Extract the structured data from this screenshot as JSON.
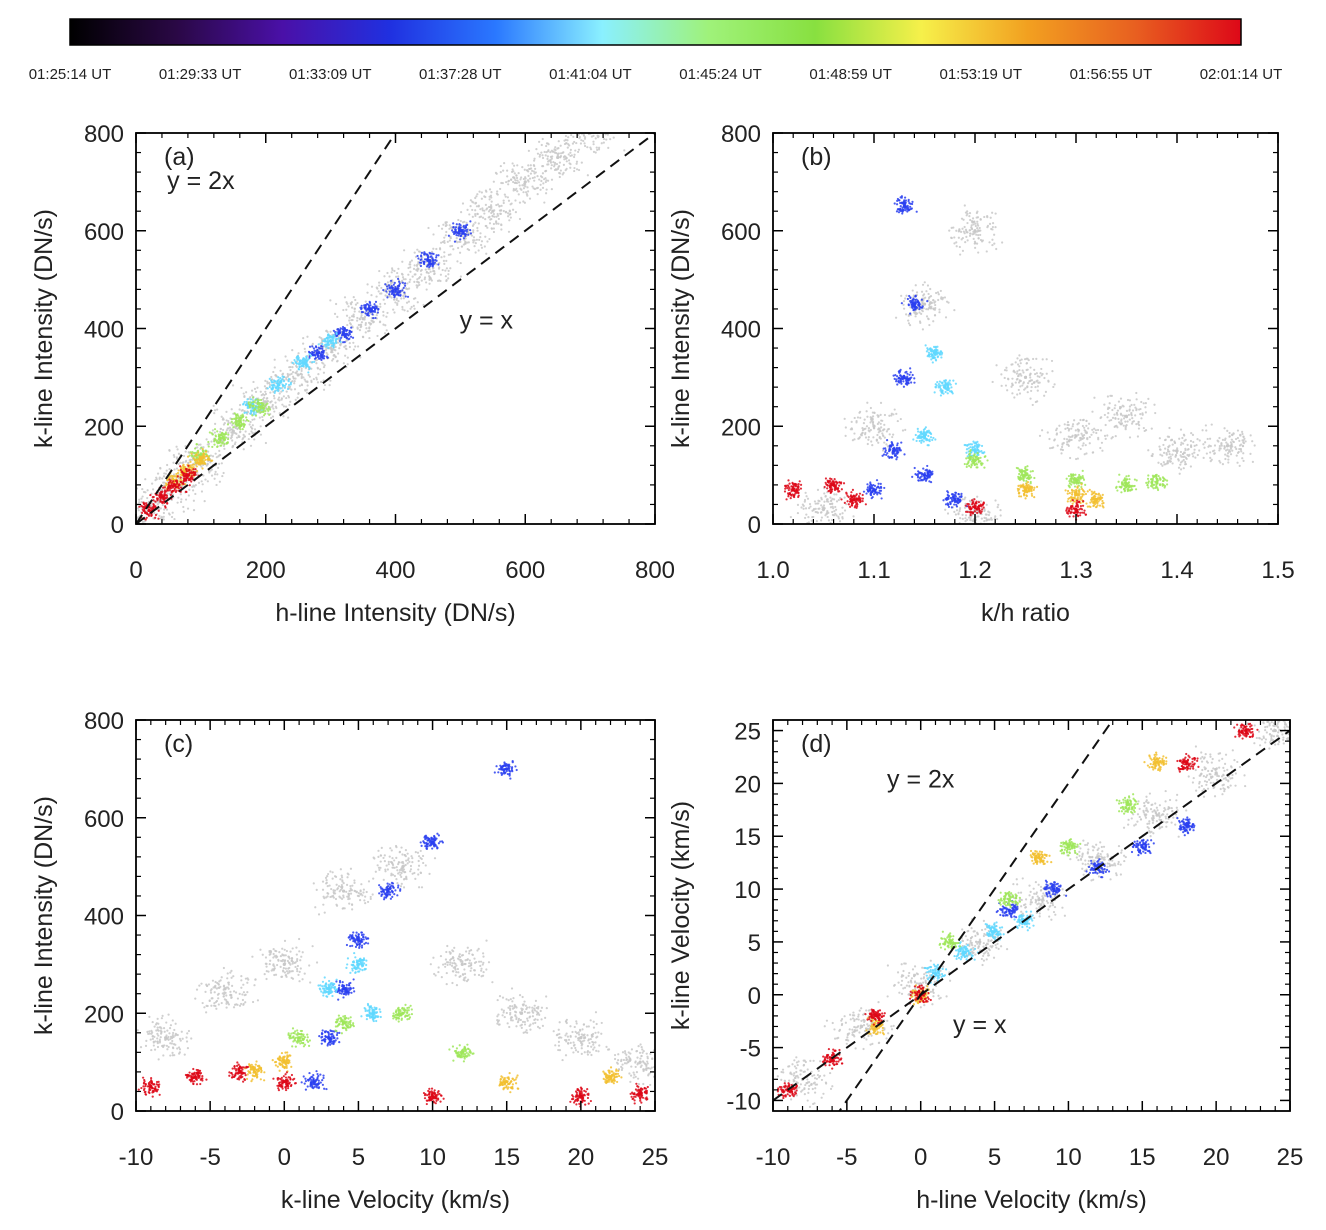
{
  "colorbar": {
    "tick_labels": [
      "01:25:14 UT",
      "01:29:33 UT",
      "01:33:09 UT",
      "01:37:28 UT",
      "01:41:04 UT",
      "01:45:24 UT",
      "01:48:59 UT",
      "01:53:19 UT",
      "01:56:55 UT",
      "02:01:14 UT"
    ],
    "colormap": [
      "#000000",
      "#2a0845",
      "#4a10a8",
      "#2030e0",
      "#2a78ff",
      "#8af0ff",
      "#9ff27a",
      "#88e040",
      "#f6f04a",
      "#f2a020",
      "#e86020",
      "#dd0818"
    ]
  },
  "chart_data": [
    {
      "type": "scatter",
      "panel_label": "(a)",
      "xlabel": "h-line Intensity (DN/s)",
      "ylabel": "k-line Intensity (DN/s)",
      "xlim": [
        0,
        800
      ],
      "ylim": [
        0,
        800
      ],
      "xticks": [
        0,
        200,
        400,
        600,
        800
      ],
      "yticks": [
        0,
        200,
        400,
        600,
        800
      ],
      "xtick_labels": [
        "0",
        "200",
        "400",
        "600",
        "800"
      ],
      "ytick_labels": [
        "0",
        "200",
        "400",
        "600",
        "800"
      ],
      "annotations": [
        {
          "text": "y = 2x",
          "x": 100,
          "y": 685
        },
        {
          "text": "y = x",
          "x": 540,
          "y": 400
        }
      ],
      "reference_lines": [
        {
          "slope": 2,
          "intercept": 0
        },
        {
          "slope": 1,
          "intercept": 0
        }
      ],
      "series": [
        {
          "color": "#c8c8c8",
          "points": [
            [
              20,
              28
            ],
            [
              60,
              80
            ],
            [
              100,
              130
            ],
            [
              150,
              190
            ],
            [
              200,
              250
            ],
            [
              250,
              305
            ],
            [
              300,
              360
            ],
            [
              350,
              420
            ],
            [
              400,
              475
            ],
            [
              450,
              530
            ],
            [
              500,
              590
            ],
            [
              550,
              640
            ],
            [
              600,
              700
            ],
            [
              650,
              750
            ],
            [
              700,
              800
            ]
          ]
        },
        {
          "color": "#2a40f0",
          "points": [
            [
              280,
              350
            ],
            [
              320,
              390
            ],
            [
              360,
              440
            ],
            [
              400,
              480
            ],
            [
              450,
              540
            ],
            [
              500,
              600
            ]
          ]
        },
        {
          "color": "#60d8ff",
          "points": [
            [
              180,
              240
            ],
            [
              220,
              285
            ],
            [
              260,
              330
            ],
            [
              300,
              375
            ]
          ]
        },
        {
          "color": "#9fe65a",
          "points": [
            [
              100,
              140
            ],
            [
              130,
              175
            ],
            [
              160,
              210
            ],
            [
              190,
              240
            ]
          ]
        },
        {
          "color": "#f2c030",
          "points": [
            [
              60,
              88
            ],
            [
              80,
              110
            ],
            [
              100,
              132
            ]
          ]
        },
        {
          "color": "#dd0818",
          "points": [
            [
              20,
              28
            ],
            [
              40,
              55
            ],
            [
              60,
              80
            ],
            [
              80,
              100
            ]
          ]
        }
      ]
    },
    {
      "type": "scatter",
      "panel_label": "(b)",
      "xlabel": "k/h ratio",
      "ylabel": "k-line Intensity (DN/s)",
      "xlim": [
        1.0,
        1.5
      ],
      "ylim": [
        0,
        800
      ],
      "xticks": [
        1.0,
        1.1,
        1.2,
        1.3,
        1.4,
        1.5
      ],
      "yticks": [
        0,
        200,
        400,
        600,
        800
      ],
      "xtick_labels": [
        "1.0",
        "1.1",
        "1.2",
        "1.3",
        "1.4",
        "1.5"
      ],
      "ytick_labels": [
        "0",
        "200",
        "400",
        "600",
        "800"
      ],
      "series": [
        {
          "color": "#c8c8c8",
          "points": [
            [
              1.05,
              30
            ],
            [
              1.1,
              200
            ],
            [
              1.15,
              450
            ],
            [
              1.2,
              600
            ],
            [
              1.25,
              300
            ],
            [
              1.3,
              180
            ],
            [
              1.35,
              220
            ],
            [
              1.4,
              150
            ],
            [
              1.45,
              160
            ],
            [
              1.2,
              25
            ]
          ]
        },
        {
          "color": "#2a40f0",
          "points": [
            [
              1.1,
              70
            ],
            [
              1.12,
              150
            ],
            [
              1.13,
              300
            ],
            [
              1.14,
              450
            ],
            [
              1.13,
              650
            ],
            [
              1.15,
              100
            ],
            [
              1.18,
              50
            ]
          ]
        },
        {
          "color": "#60d8ff",
          "points": [
            [
              1.15,
              180
            ],
            [
              1.17,
              280
            ],
            [
              1.16,
              350
            ],
            [
              1.2,
              150
            ]
          ]
        },
        {
          "color": "#9fe65a",
          "points": [
            [
              1.2,
              130
            ],
            [
              1.25,
              100
            ],
            [
              1.3,
              90
            ],
            [
              1.35,
              80
            ],
            [
              1.38,
              85
            ]
          ]
        },
        {
          "color": "#f2c030",
          "points": [
            [
              1.25,
              70
            ],
            [
              1.3,
              60
            ],
            [
              1.32,
              50
            ]
          ]
        },
        {
          "color": "#dd0818",
          "points": [
            [
              1.02,
              70
            ],
            [
              1.06,
              80
            ],
            [
              1.08,
              50
            ],
            [
              1.2,
              35
            ],
            [
              1.3,
              30
            ]
          ]
        }
      ]
    },
    {
      "type": "scatter",
      "panel_label": "(c)",
      "xlabel": "k-line Velocity (km/s)",
      "ylabel": "k-line Intensity (DN/s)",
      "xlim": [
        -10,
        25
      ],
      "ylim": [
        0,
        800
      ],
      "xticks": [
        -10,
        -5,
        0,
        5,
        10,
        15,
        20,
        25
      ],
      "yticks": [
        0,
        200,
        400,
        600,
        800
      ],
      "xtick_labels": [
        "-10",
        "-5",
        "0",
        "5",
        "10",
        "15",
        "20",
        "25"
      ],
      "ytick_labels": [
        "0",
        "200",
        "400",
        "600",
        "800"
      ],
      "series": [
        {
          "color": "#c8c8c8",
          "points": [
            [
              -8,
              150
            ],
            [
              -4,
              250
            ],
            [
              0,
              300
            ],
            [
              4,
              450
            ],
            [
              8,
              500
            ],
            [
              12,
              300
            ],
            [
              16,
              200
            ],
            [
              20,
              150
            ],
            [
              24,
              100
            ]
          ]
        },
        {
          "color": "#2a40f0",
          "points": [
            [
              2,
              60
            ],
            [
              3,
              150
            ],
            [
              4,
              250
            ],
            [
              5,
              350
            ],
            [
              7,
              450
            ],
            [
              10,
              550
            ],
            [
              15,
              700
            ]
          ]
        },
        {
          "color": "#60d8ff",
          "points": [
            [
              3,
              250
            ],
            [
              5,
              300
            ],
            [
              6,
              200
            ]
          ]
        },
        {
          "color": "#9fe65a",
          "points": [
            [
              1,
              150
            ],
            [
              4,
              180
            ],
            [
              8,
              200
            ],
            [
              12,
              120
            ]
          ]
        },
        {
          "color": "#f2c030",
          "points": [
            [
              -2,
              80
            ],
            [
              0,
              100
            ],
            [
              15,
              60
            ],
            [
              22,
              70
            ]
          ]
        },
        {
          "color": "#dd0818",
          "points": [
            [
              -9,
              50
            ],
            [
              -6,
              70
            ],
            [
              -3,
              80
            ],
            [
              0,
              60
            ],
            [
              10,
              30
            ],
            [
              20,
              30
            ],
            [
              24,
              35
            ]
          ]
        }
      ]
    },
    {
      "type": "scatter",
      "panel_label": "(d)",
      "xlabel": "h-line Velocity (km/s)",
      "ylabel": "k-line Velocity (km/s)",
      "xlim": [
        -10,
        25
      ],
      "ylim": [
        -11,
        26
      ],
      "xticks": [
        -10,
        -5,
        0,
        5,
        10,
        15,
        20,
        25
      ],
      "yticks": [
        -10,
        -5,
        0,
        5,
        10,
        15,
        20,
        25
      ],
      "xtick_labels": [
        "-10",
        "-5",
        "0",
        "5",
        "10",
        "15",
        "20",
        "25"
      ],
      "ytick_labels": [
        "-10",
        "-5",
        "0",
        "5",
        "10",
        "15",
        "20",
        "25"
      ],
      "annotations": [
        {
          "text": "y = 2x",
          "x": 0,
          "y": 19.6
        },
        {
          "text": "y = x",
          "x": 4,
          "y": -3.6
        }
      ],
      "reference_lines": [
        {
          "slope": 2,
          "intercept": 0
        },
        {
          "slope": 1,
          "intercept": 0
        }
      ],
      "series": [
        {
          "color": "#c8c8c8",
          "points": [
            [
              -8,
              -8
            ],
            [
              -4,
              -3
            ],
            [
              0,
              1
            ],
            [
              4,
              5
            ],
            [
              8,
              9
            ],
            [
              12,
              13
            ],
            [
              16,
              17
            ],
            [
              20,
              21
            ],
            [
              24,
              25
            ]
          ]
        },
        {
          "color": "#2a40f0",
          "points": [
            [
              6,
              8
            ],
            [
              9,
              10
            ],
            [
              12,
              12
            ],
            [
              15,
              14
            ],
            [
              18,
              16
            ]
          ]
        },
        {
          "color": "#60d8ff",
          "points": [
            [
              1,
              2
            ],
            [
              3,
              4
            ],
            [
              5,
              6
            ],
            [
              7,
              7
            ]
          ]
        },
        {
          "color": "#9fe65a",
          "points": [
            [
              2,
              5
            ],
            [
              6,
              9
            ],
            [
              10,
              14
            ],
            [
              14,
              18
            ]
          ]
        },
        {
          "color": "#f2c030",
          "points": [
            [
              -3,
              -3
            ],
            [
              0,
              0
            ],
            [
              8,
              13
            ],
            [
              16,
              22
            ]
          ]
        },
        {
          "color": "#dd0818",
          "points": [
            [
              -9,
              -9
            ],
            [
              -6,
              -6
            ],
            [
              -3,
              -2
            ],
            [
              0,
              0
            ],
            [
              18,
              22
            ],
            [
              22,
              25
            ]
          ]
        }
      ]
    }
  ]
}
